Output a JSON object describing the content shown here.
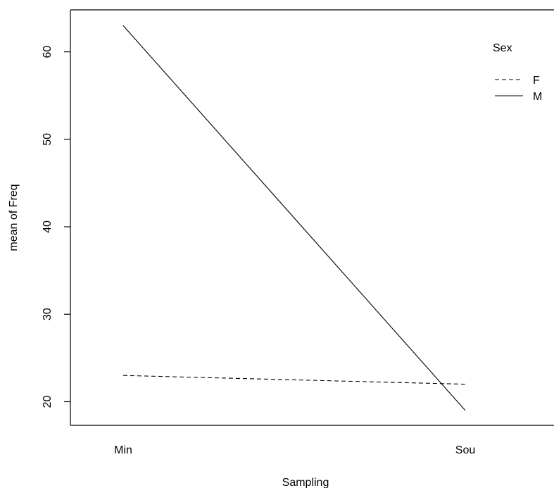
{
  "chart_data": {
    "type": "line",
    "title": "",
    "xlabel": "Sampling",
    "ylabel": "mean of  Freq",
    "categories": [
      "Min",
      "Sou"
    ],
    "ylim": [
      17.3,
      64.8
    ],
    "yticks": [
      20,
      30,
      40,
      50,
      60
    ],
    "grid": false,
    "legend": {
      "title": "Sex",
      "placement": "top-right"
    },
    "series": [
      {
        "name": "F",
        "values": [
          23.0,
          22.0
        ],
        "linetype": "dashed",
        "color": "#000000"
      },
      {
        "name": "M",
        "values": [
          63.0,
          19.0
        ],
        "linetype": "solid",
        "color": "#000000"
      }
    ]
  }
}
